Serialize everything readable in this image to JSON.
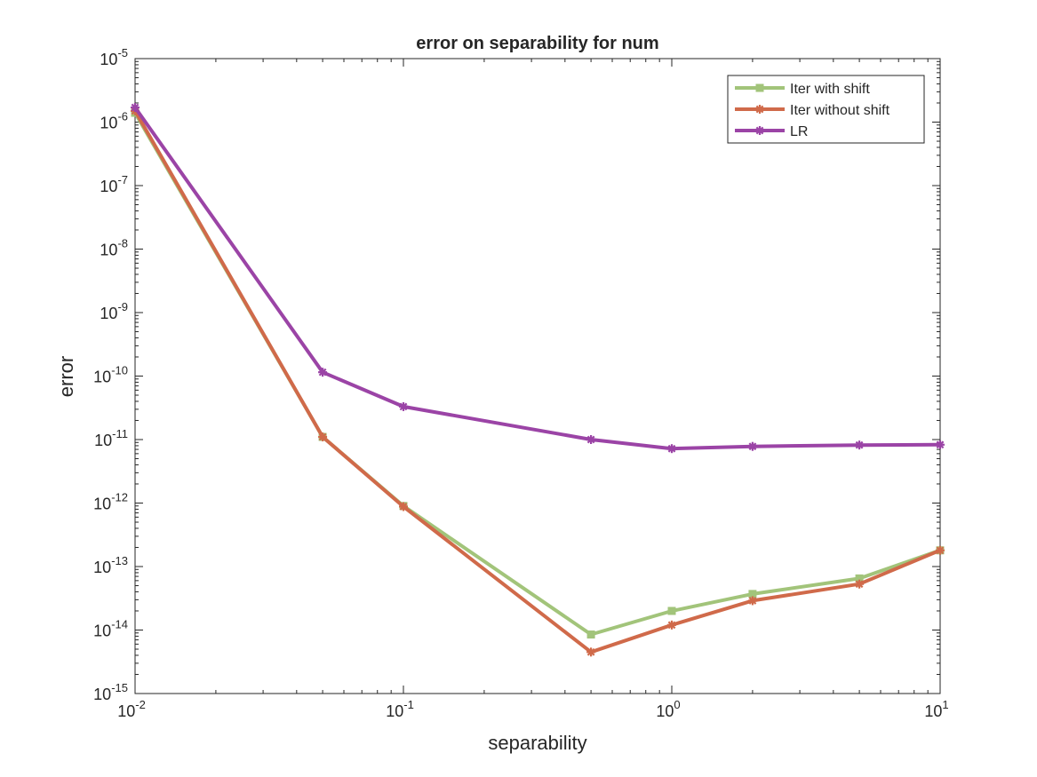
{
  "chart_data": {
    "type": "line",
    "title": "error on separability for num",
    "xlabel": "separability",
    "ylabel": "error",
    "xscale": "log",
    "yscale": "log",
    "xlim": [
      0.01,
      10
    ],
    "ylim": [
      1e-15,
      1e-05
    ],
    "x": [
      0.01,
      0.05,
      0.1,
      0.5,
      1,
      2,
      5,
      10
    ],
    "x_ticks": [
      {
        "base": "10",
        "exp": "-2",
        "value": 0.01
      },
      {
        "base": "10",
        "exp": "-1",
        "value": 0.1
      },
      {
        "base": "10",
        "exp": "0",
        "value": 1
      },
      {
        "base": "10",
        "exp": "1",
        "value": 10
      }
    ],
    "y_ticks": [
      {
        "base": "10",
        "exp": "-15",
        "value": 1e-15
      },
      {
        "base": "10",
        "exp": "-14",
        "value": 1e-14
      },
      {
        "base": "10",
        "exp": "-13",
        "value": 1e-13
      },
      {
        "base": "10",
        "exp": "-12",
        "value": 1e-12
      },
      {
        "base": "10",
        "exp": "-11",
        "value": 1e-11
      },
      {
        "base": "10",
        "exp": "-10",
        "value": 1e-10
      },
      {
        "base": "10",
        "exp": "-9",
        "value": 1e-09
      },
      {
        "base": "10",
        "exp": "-8",
        "value": 1e-08
      },
      {
        "base": "10",
        "exp": "-7",
        "value": 1e-07
      },
      {
        "base": "10",
        "exp": "-6",
        "value": 1e-06
      },
      {
        "base": "10",
        "exp": "-5",
        "value": 1e-05
      }
    ],
    "series": [
      {
        "name": "Iter with shift",
        "color": "#a2c47a",
        "marker": "square",
        "values": [
          1.4e-06,
          1.1e-11,
          9e-13,
          8.5e-15,
          2e-14,
          3.7e-14,
          6.5e-14,
          1.8e-13
        ]
      },
      {
        "name": "Iter without shift",
        "color": "#d06a4a",
        "marker": "asterisk",
        "values": [
          1.5e-06,
          1.1e-11,
          8.8e-13,
          4.5e-15,
          1.2e-14,
          2.9e-14,
          5.3e-14,
          1.8e-13
        ]
      },
      {
        "name": "LR",
        "color": "#9b44a6",
        "marker": "asterisk",
        "values": [
          1.7e-06,
          1.15e-10,
          3.3e-11,
          1e-11,
          7.2e-12,
          7.8e-12,
          8.2e-12,
          8.3e-12
        ]
      }
    ],
    "grid": false,
    "legend_position": "top-right"
  }
}
